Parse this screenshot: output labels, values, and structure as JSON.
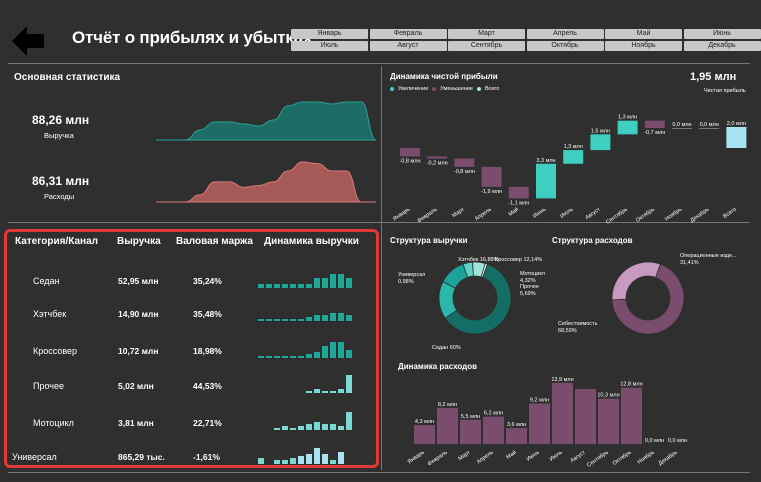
{
  "header": {
    "title": "Отчёт о прибылях и убытках",
    "months": [
      "Январь",
      "Февраль",
      "Март",
      "Апрель",
      "Май",
      "Июнь",
      "Июль",
      "Август",
      "Сентябрь",
      "Октябрь",
      "Ноябрь",
      "Декабрь"
    ]
  },
  "main_stats": {
    "title": "Основная статистика",
    "revenue_value": "88,26 млн",
    "revenue_label": "Выручка",
    "expenses_value": "86,31 млн",
    "expenses_label": "Расходы"
  },
  "colors": {
    "teal": "#1fa898",
    "teal_dark": "#147a6e",
    "red": "#c16563",
    "purple": "#7a4d6f",
    "cyan": "#3fcfc0",
    "light_blue": "#a9e3f1",
    "highlight": "#e0393a"
  },
  "profit": {
    "title": "Динамика чистой прибыли",
    "value": "1,95 млн",
    "value_label": "Чистая прибыль",
    "legend": [
      "Увеличение",
      "Уменьшение",
      "Всего"
    ]
  },
  "table": {
    "headers": [
      "Категория/Канал",
      "Выручка",
      "Валовая маржа",
      "Динамика выручки"
    ],
    "rows": [
      {
        "name": "Седан",
        "revenue": "52,95 млн",
        "margin": "35,24%",
        "spark": [
          2,
          2,
          2,
          2,
          2,
          2,
          2,
          5,
          5,
          7,
          7,
          5
        ]
      },
      {
        "name": "Хэтчбек",
        "revenue": "14,90 млн",
        "margin": "35,48%",
        "spark": [
          1,
          1,
          1,
          1,
          1,
          1,
          2,
          3,
          3,
          4,
          4,
          3
        ]
      },
      {
        "name": "Кроссовер",
        "revenue": "10,72 млн",
        "margin": "18,98%",
        "spark": [
          1,
          1,
          1,
          1,
          1,
          1,
          2,
          3,
          6,
          8,
          8,
          4
        ]
      },
      {
        "name": "Прочее",
        "revenue": "5,02 млн",
        "margin": "44,53%",
        "spark": [
          0,
          0,
          0,
          0,
          0,
          0,
          1,
          2,
          1,
          1,
          2,
          9
        ]
      },
      {
        "name": "Мотоцикл",
        "revenue": "3,81 млн",
        "margin": "22,71%",
        "spark": [
          0,
          0,
          1,
          2,
          1,
          2,
          3,
          4,
          3,
          3,
          2,
          9
        ]
      },
      {
        "name": "Универсал",
        "revenue": "865,29 тыс.",
        "margin": "-1,61%",
        "spark": [
          3,
          0,
          2,
          2,
          3,
          4,
          5,
          8,
          5,
          2,
          6,
          0
        ]
      }
    ]
  },
  "chart_data": [
    {
      "type": "waterfall",
      "title": "Динамика чистой прибыли",
      "categories": [
        "Январь",
        "Февраль",
        "Март",
        "Апрель",
        "Май",
        "Июнь",
        "Июль",
        "Август",
        "Сентябрь",
        "Октябрь",
        "Ноябрь",
        "Декабрь",
        "Всего"
      ],
      "values": [
        -0.8,
        -0.2,
        -0.8,
        -1.9,
        -1.1,
        3.3,
        1.3,
        1.5,
        1.3,
        -0.7,
        0.0,
        0.0,
        2.0
      ],
      "labels": [
        "-0,8 млн",
        "-0,2 млн",
        "-0,8 млн",
        "-1,9 млн",
        "-1,1 млн",
        "3,3 млн",
        "1,3 млн",
        "1,5 млн",
        "1,3 млн",
        "-0,7 млн",
        "0,0 млн",
        "0,0 млн",
        "2,0 млн"
      ]
    },
    {
      "type": "donut",
      "title": "Структура выручки",
      "slices": [
        {
          "name": "Седан 60%",
          "value": 60
        },
        {
          "name": "Хэтчбек 16,88%",
          "value": 16.88
        },
        {
          "name": "Кроссовер 12,14%",
          "value": 12.14
        },
        {
          "name": "Мотоцикл 4,32%",
          "value": 4.32
        },
        {
          "name": "Прочее 5,69%",
          "value": 5.69
        },
        {
          "name": "Универсал 0,98%",
          "value": 0.98
        }
      ]
    },
    {
      "type": "donut",
      "title": "Структура расходов",
      "slices": [
        {
          "name": "Себестоимость 68,59%",
          "value": 68.59
        },
        {
          "name": "Операционные изде... 31,41%",
          "value": 31.41
        }
      ]
    },
    {
      "type": "bar",
      "title": "Динамика расходов",
      "categories": [
        "Январь",
        "Февраль",
        "Март",
        "Апрель",
        "Май",
        "Июнь",
        "Июль",
        "Август",
        "Сентябрь",
        "Октябрь",
        "Ноябрь",
        "Декабрь"
      ],
      "values": [
        4.3,
        8.2,
        5.5,
        6.2,
        3.6,
        9.2,
        13.9,
        12.5,
        10.3,
        12.8,
        0.0,
        0.0
      ],
      "labels": [
        "4,3 млн",
        "8,2 млн",
        "5,5 млн",
        "6,2 млн",
        "3,6 млн",
        "9,2 млн",
        "13,9 млн",
        "",
        "10,3 млн",
        "12,8 млн",
        "0,0 млн",
        "0,0 млн"
      ]
    },
    {
      "type": "area",
      "series": [
        {
          "name": "Выручка",
          "values": [
            0,
            0,
            0,
            5,
            9,
            9,
            8,
            7,
            10,
            17,
            19,
            19,
            18,
            19,
            19,
            0
          ]
        },
        {
          "name": "Расходы",
          "values": [
            0,
            0,
            0,
            4,
            11,
            11,
            8,
            9,
            11,
            17,
            22,
            21,
            17,
            17,
            0,
            0
          ]
        }
      ]
    }
  ]
}
